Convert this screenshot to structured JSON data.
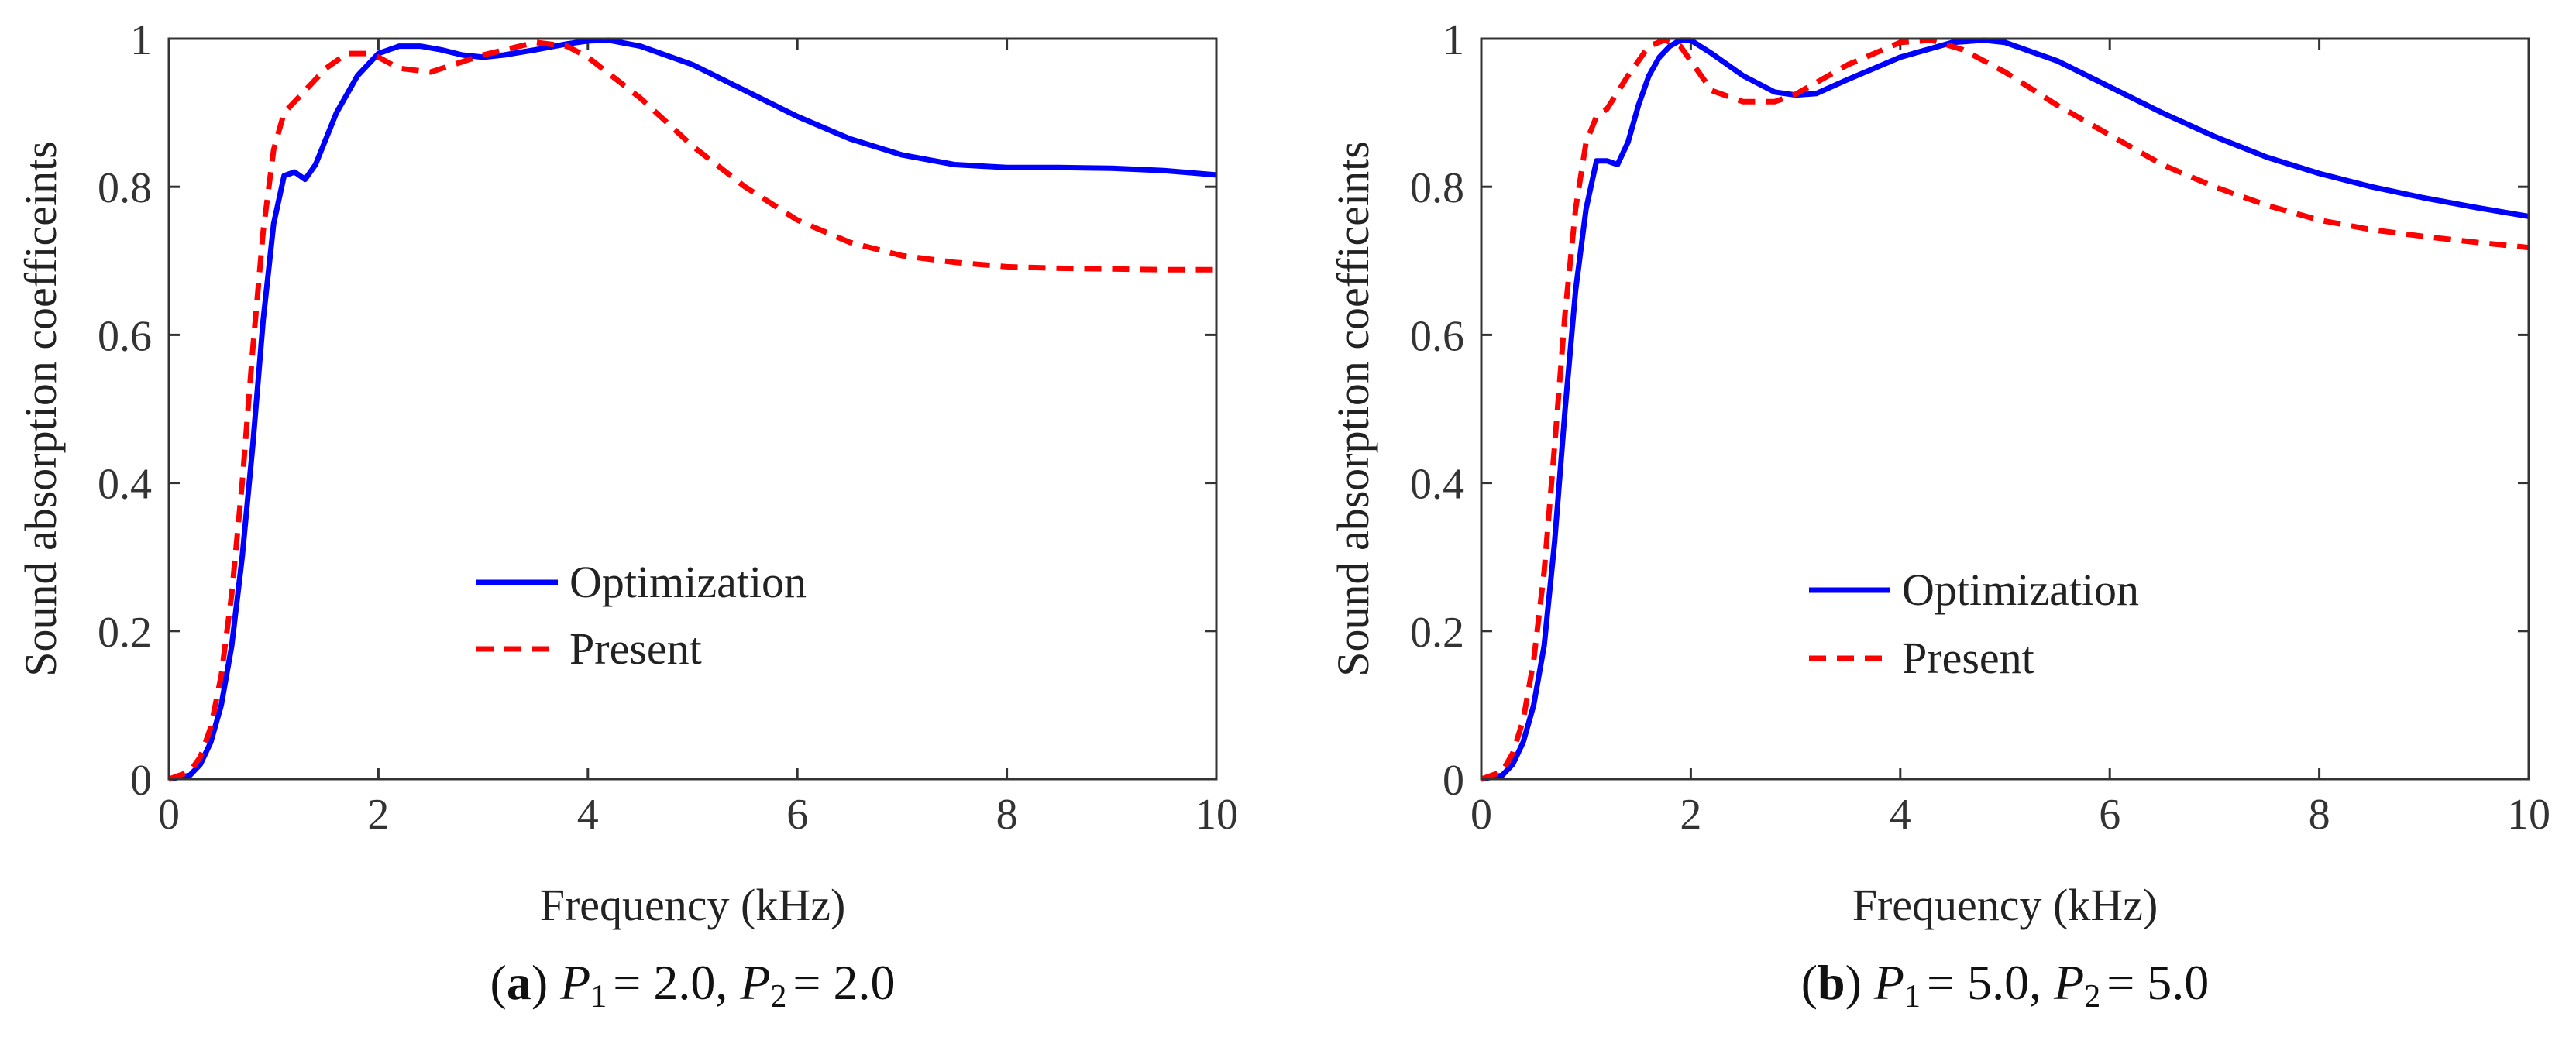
{
  "colors": {
    "optimization": "#0000ff",
    "present": "#ff0000",
    "axis": "#333333",
    "background": "#ffffff"
  },
  "chart_data": [
    {
      "type": "line",
      "id": "a",
      "xlabel": "Frequency (kHz)",
      "ylabel": "Sound absorption coefficeints",
      "xlim": [
        0,
        10
      ],
      "ylim": [
        0,
        1
      ],
      "xticks": [
        "0",
        "2",
        "4",
        "6",
        "8",
        "10"
      ],
      "yticks": [
        "0",
        "0.2",
        "0.4",
        "0.6",
        "0.8",
        "1"
      ],
      "legend_position": "center",
      "caption": {
        "letter": "a",
        "p1_label": "P",
        "p1_sub": "1",
        "p1_value": "= 2.0,",
        "p2_label": "P",
        "p2_sub": "2",
        "p2_value": "= 2.0"
      },
      "series": [
        {
          "name": "Optimization",
          "style": "solid",
          "x": [
            0,
            0.2,
            0.3,
            0.4,
            0.5,
            0.6,
            0.7,
            0.8,
            0.9,
            1.0,
            1.1,
            1.2,
            1.3,
            1.4,
            1.6,
            1.8,
            2.0,
            2.2,
            2.4,
            2.6,
            2.8,
            3.0,
            3.2,
            3.5,
            3.8,
            4.0,
            4.2,
            4.5,
            5.0,
            5.5,
            6.0,
            6.5,
            7.0,
            7.5,
            8.0,
            8.5,
            9.0,
            9.5,
            10.0
          ],
          "y": [
            0.0,
            0.005,
            0.02,
            0.05,
            0.1,
            0.18,
            0.3,
            0.45,
            0.62,
            0.75,
            0.815,
            0.82,
            0.81,
            0.83,
            0.9,
            0.95,
            0.98,
            0.99,
            0.99,
            0.985,
            0.978,
            0.975,
            0.978,
            0.985,
            0.993,
            0.997,
            0.998,
            0.99,
            0.965,
            0.93,
            0.895,
            0.865,
            0.843,
            0.83,
            0.826,
            0.826,
            0.825,
            0.822,
            0.816
          ]
        },
        {
          "name": "Present",
          "style": "dashed",
          "x": [
            0,
            0.2,
            0.3,
            0.4,
            0.5,
            0.6,
            0.7,
            0.8,
            0.9,
            1.0,
            1.1,
            1.3,
            1.5,
            1.7,
            1.9,
            2.0,
            2.2,
            2.5,
            3.0,
            3.5,
            3.8,
            4.0,
            4.5,
            5.0,
            5.5,
            6.0,
            6.5,
            7.0,
            7.5,
            8.0,
            8.5,
            9.0,
            9.5,
            10.0
          ],
          "y": [
            0.0,
            0.01,
            0.03,
            0.07,
            0.14,
            0.25,
            0.4,
            0.58,
            0.74,
            0.85,
            0.9,
            0.93,
            0.96,
            0.98,
            0.98,
            0.975,
            0.96,
            0.955,
            0.978,
            0.995,
            0.99,
            0.975,
            0.92,
            0.855,
            0.8,
            0.755,
            0.725,
            0.707,
            0.698,
            0.692,
            0.69,
            0.689,
            0.688,
            0.688
          ]
        }
      ]
    },
    {
      "type": "line",
      "id": "b",
      "xlabel": "Frequency (kHz)",
      "ylabel": "Sound absorption coefficeints",
      "xlim": [
        0,
        10
      ],
      "ylim": [
        0,
        1
      ],
      "xticks": [
        "0",
        "2",
        "4",
        "6",
        "8",
        "10"
      ],
      "yticks": [
        "0",
        "0.2",
        "0.4",
        "0.6",
        "0.8",
        "1"
      ],
      "legend_position": "center",
      "caption": {
        "letter": "b",
        "p1_label": "P",
        "p1_sub": "1",
        "p1_value": "= 5.0,",
        "p2_label": "P",
        "p2_sub": "2",
        "p2_value": "= 5.0"
      },
      "series": [
        {
          "name": "Optimization",
          "style": "solid",
          "x": [
            0,
            0.2,
            0.3,
            0.4,
            0.5,
            0.6,
            0.7,
            0.8,
            0.9,
            1.0,
            1.1,
            1.2,
            1.3,
            1.4,
            1.5,
            1.6,
            1.7,
            1.8,
            1.9,
            2.0,
            2.2,
            2.5,
            2.8,
            3.0,
            3.2,
            3.5,
            4.0,
            4.5,
            4.8,
            5.0,
            5.5,
            6.0,
            6.5,
            7.0,
            7.5,
            8.0,
            8.5,
            9.0,
            9.5,
            10.0
          ],
          "y": [
            0.0,
            0.005,
            0.02,
            0.05,
            0.1,
            0.18,
            0.32,
            0.5,
            0.66,
            0.77,
            0.835,
            0.835,
            0.83,
            0.86,
            0.91,
            0.95,
            0.975,
            0.99,
            0.998,
            0.998,
            0.98,
            0.95,
            0.928,
            0.924,
            0.926,
            0.945,
            0.975,
            0.995,
            0.998,
            0.995,
            0.97,
            0.935,
            0.9,
            0.868,
            0.84,
            0.818,
            0.8,
            0.785,
            0.772,
            0.76
          ]
        },
        {
          "name": "Present",
          "style": "dashed",
          "x": [
            0,
            0.2,
            0.3,
            0.4,
            0.5,
            0.6,
            0.7,
            0.8,
            0.9,
            1.0,
            1.1,
            1.2,
            1.4,
            1.6,
            1.75,
            1.9,
            2.0,
            2.2,
            2.5,
            2.8,
            3.0,
            3.5,
            4.0,
            4.3,
            4.6,
            5.0,
            5.5,
            6.0,
            6.5,
            7.0,
            7.5,
            8.0,
            8.5,
            9.0,
            9.5,
            10.0
          ],
          "y": [
            0.0,
            0.01,
            0.035,
            0.08,
            0.16,
            0.28,
            0.45,
            0.63,
            0.77,
            0.86,
            0.895,
            0.905,
            0.95,
            0.99,
            0.998,
            0.99,
            0.97,
            0.93,
            0.915,
            0.915,
            0.925,
            0.965,
            0.995,
            0.998,
            0.985,
            0.955,
            0.91,
            0.87,
            0.83,
            0.8,
            0.775,
            0.755,
            0.742,
            0.733,
            0.725,
            0.718
          ]
        }
      ]
    }
  ]
}
